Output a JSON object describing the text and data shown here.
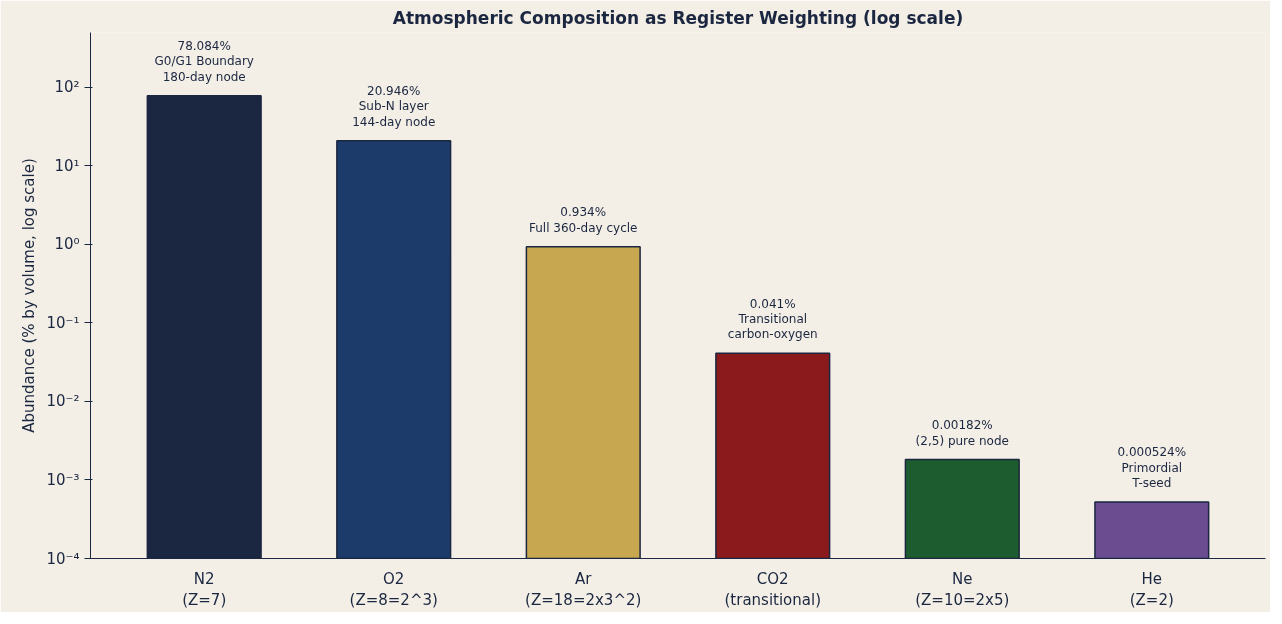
{
  "chart_data": {
    "type": "bar",
    "title": "Atmospheric Composition as Register Weighting (log scale)",
    "ylabel": "Abundance (% by volume, log scale)",
    "categories": [
      "N2\n(Z=7)",
      "O2\n(Z=8=2^3)",
      "Ar\n(Z=18=2x3^2)",
      "CO2\n(transitional)",
      "Ne\n(Z=10=2x5)",
      "He\n(Z=2)"
    ],
    "values": [
      78.084,
      20.946,
      0.934,
      0.041,
      0.00182,
      0.000524
    ],
    "colors": [
      "#1b2640",
      "#1c3a6a",
      "#c8a751",
      "#8b1a1d",
      "#1c5c2f",
      "#6b4c91"
    ],
    "value_labels": [
      "78.084%\nG0/G1 Boundary\n180-day node",
      "20.946%\nSub-N layer\n144-day node",
      "0.934%\nFull 360-day cycle",
      "0.041%\nTransitional\ncarbon-oxygen",
      "0.00182%\n(2,5) pure node",
      "0.000524%\nPrimordial\nT-seed"
    ],
    "log": true,
    "ylim": [
      0.0001,
      500
    ],
    "yticks": [
      {
        "value": 0.0001,
        "label": "10⁻⁴"
      },
      {
        "value": 0.001,
        "label": "10⁻³"
      },
      {
        "value": 0.01,
        "label": "10⁻²"
      },
      {
        "value": 0.1,
        "label": "10⁻¹"
      },
      {
        "value": 1,
        "label": "10⁰"
      },
      {
        "value": 10,
        "label": "10¹"
      },
      {
        "value": 100,
        "label": "10²"
      }
    ],
    "grid": false
  }
}
